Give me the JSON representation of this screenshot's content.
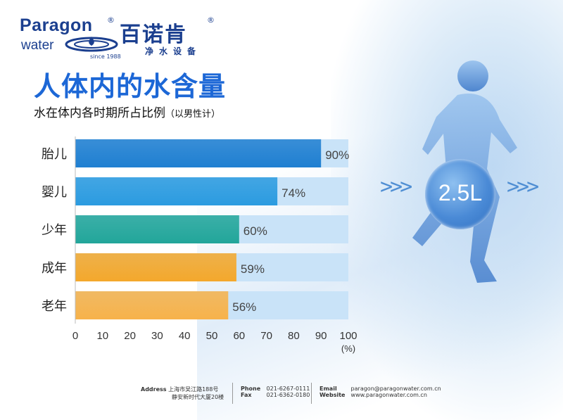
{
  "colors": {
    "title_blue": "#1c67d6",
    "logo_blue": "#1b3f8f",
    "track": "#c9e3f8"
  },
  "logo": {
    "brand_en": "Paragon",
    "brand_water": "water",
    "brand_cn": "百诺肯",
    "brand_cn_sub": "净水设备",
    "since": "since 1988",
    "reg": "®"
  },
  "title": "人体内的水含量",
  "subtitle": "水在体内各时期所占比例",
  "subtitle_note": "（以男性计）",
  "badge": {
    "value": "2.5L",
    "arrows_left": ">>>",
    "arrows_right": ">>>"
  },
  "chart_data": {
    "type": "bar",
    "orientation": "horizontal",
    "categories": [
      "胎儿",
      "婴儿",
      "少年",
      "成年",
      "老年"
    ],
    "values": [
      90,
      74,
      60,
      59,
      56
    ],
    "value_labels": [
      "90%",
      "74%",
      "60%",
      "59%",
      "56%"
    ],
    "bar_colors": [
      "#1f7fd1",
      "#2b9be0",
      "#22a69a",
      "#f4a82c",
      "#f7b24a"
    ],
    "xlim": [
      0,
      100
    ],
    "xticks": [
      0,
      10,
      20,
      30,
      40,
      50,
      60,
      70,
      80,
      90,
      100
    ],
    "xunit": "(%)",
    "grid": false,
    "legend": "none"
  },
  "footer": {
    "address_label": "Address",
    "address_line1": "上海市吴江路188号",
    "address_line2": "静安新时代大厦20楼",
    "phone_label": "Phone",
    "phone": "021-6267-0111",
    "fax_label": "Fax",
    "fax": "021-6362-0180",
    "email_label": "Email",
    "email": "paragon@paragonwater.com.cn",
    "website_label": "Website",
    "website": "www.paragonwater.com.cn"
  }
}
